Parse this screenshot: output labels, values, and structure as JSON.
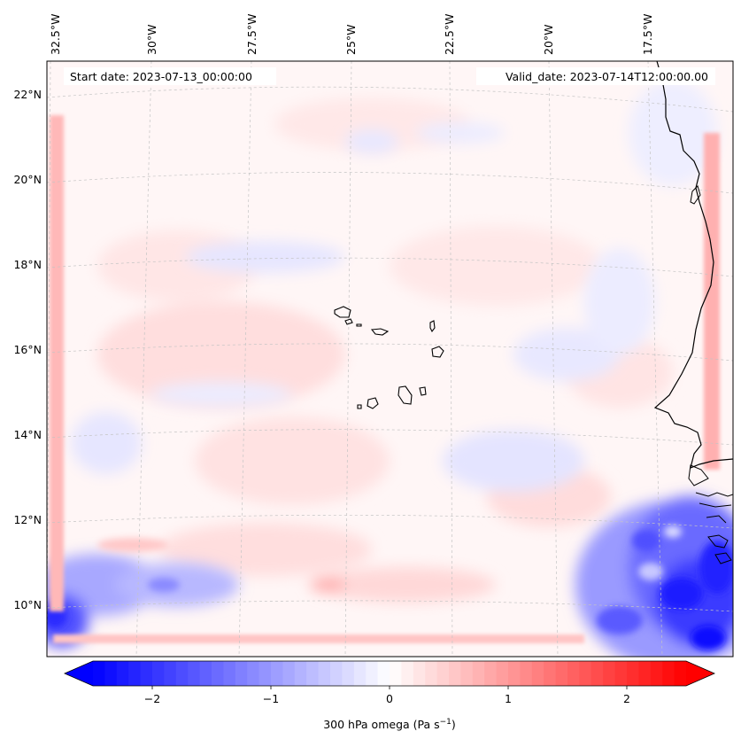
{
  "map": {
    "start_label": "Start date: 2023-07-13_00:00:00",
    "valid_label": "Valid_date: 2023-07-14T12:00:00.00",
    "lon_ticks": [
      "32.5°W",
      "30°W",
      "27.5°W",
      "25°W",
      "22.5°W",
      "20°W",
      "17.5°W"
    ],
    "lat_ticks": [
      "22°N",
      "20°N",
      "18°N",
      "16°N",
      "14°N",
      "12°N",
      "10°N"
    ],
    "field": "300 hPa omega",
    "colormap": "bwr",
    "colors": {
      "negative": "#0000ff",
      "neutral": "#ffffff",
      "positive": "#ff0000",
      "coastline": "#000000",
      "grid": "#bdbdbd"
    }
  },
  "colorbar": {
    "label_main": "300 hPa omega (Pa s",
    "label_exp": "−1",
    "label_close": ")",
    "ticks": [
      {
        "value": -2,
        "label": "−2"
      },
      {
        "value": -1,
        "label": "−1"
      },
      {
        "value": 0,
        "label": "0"
      },
      {
        "value": 1,
        "label": "1"
      },
      {
        "value": 2,
        "label": "2"
      }
    ],
    "vmin": -2.5,
    "vmax": 2.5,
    "levels": 51,
    "extend": "both"
  }
}
